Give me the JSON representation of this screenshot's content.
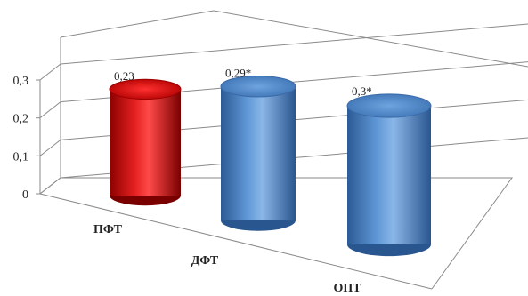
{
  "chart_data": {
    "type": "bar",
    "style": "3d-cylinder",
    "categories": [
      "ПФТ",
      "ДФТ",
      "ОПТ"
    ],
    "values": [
      0.23,
      0.29,
      0.3
    ],
    "data_labels": [
      "0,23",
      "0,29*",
      "0,3*"
    ],
    "colors": [
      "#d10000",
      "#4f86c6",
      "#4f86c6"
    ],
    "y_ticks": [
      "0",
      "0,1",
      "0,2",
      "0,3"
    ],
    "y_tick_values": [
      0,
      0.1,
      0.2,
      0.3
    ],
    "ylim": [
      0,
      0.3
    ],
    "grid": true,
    "legend": "none"
  }
}
